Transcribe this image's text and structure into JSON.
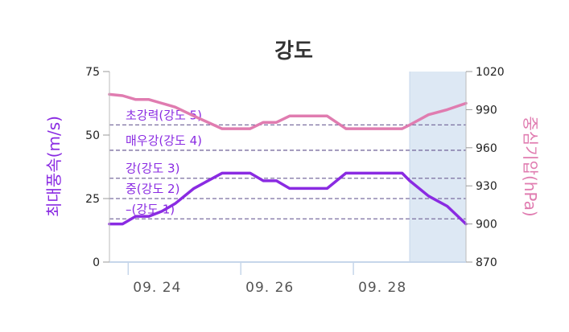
{
  "chart_data": {
    "type": "line",
    "title": "강도",
    "ylabel_left": "최대풍속(m/s)",
    "ylabel_right": "중심기압(hPa)",
    "ylim_left": [
      0,
      75
    ],
    "ylim_right": [
      870,
      1020
    ],
    "yticks_left": [
      0,
      25,
      50,
      75
    ],
    "yticks_right": [
      870,
      900,
      930,
      960,
      990,
      1020
    ],
    "x_range": [
      0,
      19
    ],
    "x_ticks": [
      {
        "x": 1,
        "label": "09. 24"
      },
      {
        "x": 7,
        "label": "09. 26"
      },
      {
        "x": 13,
        "label": "09. 28"
      }
    ],
    "forecast_start_x": 16,
    "thresholds": [
      {
        "label": "초강력(강도 5)",
        "value": 54
      },
      {
        "label": "매우강(강도 4)",
        "value": 44
      },
      {
        "label": "강(강도 3)",
        "value": 33
      },
      {
        "label": "중(강도 2)",
        "value": 25
      },
      {
        "label": "–(강도 1)",
        "value": 17
      }
    ],
    "series": [
      {
        "axis": "left",
        "color": "#8a2be2",
        "x": [
          0,
          0.7,
          1.4,
          2.1,
          2.8,
          3.5,
          4.5,
          6,
          7.5,
          8.2,
          8.9,
          9.6,
          10.6,
          11.6,
          12.6,
          13.6,
          14.6,
          15.6,
          16,
          17,
          18,
          19
        ],
        "y": [
          15,
          15,
          18,
          18,
          20,
          23,
          29,
          35,
          35,
          32,
          32,
          29,
          29,
          29,
          35,
          35,
          35,
          35,
          32,
          26,
          22,
          15
        ]
      },
      {
        "axis": "right",
        "color": "#e07cb0",
        "x": [
          0,
          0.7,
          1.4,
          2.1,
          2.8,
          3.5,
          4.5,
          6,
          7.5,
          8.2,
          8.9,
          9.6,
          10.6,
          11.6,
          12.6,
          13.6,
          14.6,
          15.6,
          16,
          17,
          18,
          19
        ],
        "y": [
          1002,
          1001,
          998,
          998,
          995,
          992,
          985,
          975,
          975,
          980,
          980,
          985,
          985,
          985,
          975,
          975,
          975,
          975,
          978,
          986,
          990,
          995
        ]
      }
    ],
    "colors": {
      "left_axis": "#8a2be2",
      "right_axis": "#e07cb0",
      "forecast_band": "#dde8f4",
      "threshold": "#7b6fa0"
    }
  }
}
